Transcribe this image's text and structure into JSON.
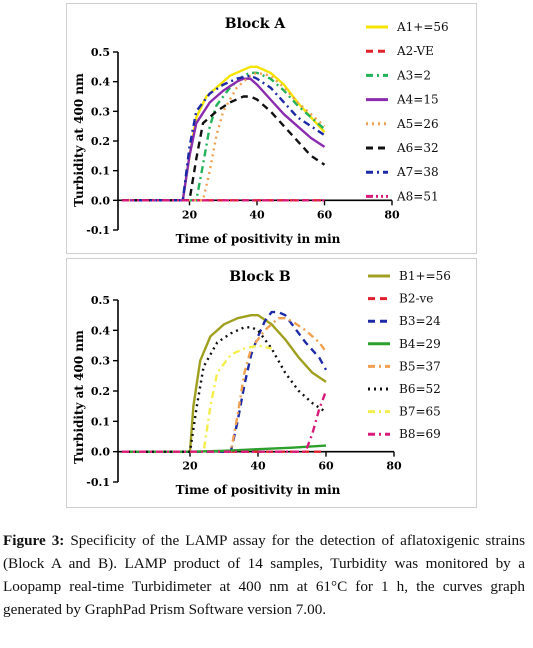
{
  "charts": [
    {
      "title": "Block A",
      "ylabel": "Turbidity at 400 nm",
      "xlabel": "Time of positivity in min",
      "xticks": [
        "20",
        "40",
        "60",
        "80"
      ],
      "yticks": [
        "-0.1",
        "0.0",
        "0.1",
        "0.2",
        "0.3",
        "0.4",
        "0.5"
      ],
      "legend": [
        "A1+=56",
        "A2-VE",
        "A3=2",
        "A4=15",
        "A5=26",
        "A6=32",
        "A7=38",
        "A8=51"
      ]
    },
    {
      "title": "Block B",
      "ylabel": "Turbidity at 400 nm",
      "xlabel": "Time of positivity in min",
      "xticks": [
        "20",
        "40",
        "60",
        "80"
      ],
      "yticks": [
        "-0.1",
        "0.0",
        "0.1",
        "0.2",
        "0.3",
        "0.4",
        "0.5"
      ],
      "legend": [
        "B1+=56",
        "B2-ve",
        "B3=24",
        "B4=29",
        "B5=37",
        "B6=52",
        "B7=65",
        "B8=69"
      ]
    }
  ],
  "caption": {
    "label": "Figure 3:",
    "text": "Specificity of the LAMP assay for the detection of aflatoxigenic strains (Block A and B). LAMP product of 14 samples, Turbidity was monitored by a Loopamp real-time Turbidimeter at 400 nm at 61°C for 1 h, the curves graph generated by GraphPad Prism Software version 7.00."
  },
  "chart_data": [
    {
      "type": "line",
      "title": "Block A",
      "xlabel": "Time of positivity in min",
      "ylabel": "Turbidity at 400 nm",
      "xlim": [
        0,
        80
      ],
      "ylim": [
        -0.1,
        0.5
      ],
      "legend_position": "right",
      "series": [
        {
          "name": "A1+=56",
          "color": "#f5e400",
          "dash": "solid",
          "x": [
            0,
            18,
            20,
            22,
            25,
            28,
            32,
            36,
            38,
            40,
            44,
            48,
            52,
            56,
            60
          ],
          "y": [
            0,
            0,
            0.15,
            0.28,
            0.35,
            0.38,
            0.42,
            0.44,
            0.45,
            0.45,
            0.43,
            0.39,
            0.33,
            0.28,
            0.23
          ]
        },
        {
          "name": "A2-VE",
          "color": "#e0202a",
          "dash": "dash",
          "x": [
            0,
            20,
            40,
            60
          ],
          "y": [
            0,
            0,
            0,
            0
          ]
        },
        {
          "name": "A3=2",
          "color": "#22b25a",
          "dash": "dashdot",
          "x": [
            0,
            22,
            24,
            26,
            28,
            32,
            36,
            38,
            40,
            44,
            48,
            52,
            56,
            60
          ],
          "y": [
            0,
            0,
            0.12,
            0.25,
            0.32,
            0.38,
            0.42,
            0.43,
            0.43,
            0.41,
            0.37,
            0.32,
            0.28,
            0.24
          ]
        },
        {
          "name": "A4=15",
          "color": "#8a2bb0",
          "dash": "solid",
          "x": [
            0,
            18,
            20,
            22,
            26,
            30,
            34,
            36,
            38,
            40,
            44,
            48,
            52,
            56,
            60
          ],
          "y": [
            0,
            0,
            0.15,
            0.26,
            0.33,
            0.37,
            0.4,
            0.41,
            0.41,
            0.39,
            0.34,
            0.29,
            0.25,
            0.21,
            0.18
          ]
        },
        {
          "name": "A5=26",
          "color": "#f0a050",
          "dash": "dot",
          "x": [
            0,
            24,
            26,
            28,
            30,
            34,
            38,
            40,
            44,
            48,
            52,
            56,
            60
          ],
          "y": [
            0,
            0,
            0.1,
            0.22,
            0.3,
            0.38,
            0.42,
            0.43,
            0.42,
            0.38,
            0.33,
            0.29,
            0.25
          ]
        },
        {
          "name": "A6=32",
          "color": "#111111",
          "dash": "dash",
          "x": [
            0,
            20,
            22,
            24,
            28,
            32,
            36,
            38,
            40,
            44,
            48,
            52,
            56,
            60
          ],
          "y": [
            0,
            0,
            0.14,
            0.26,
            0.3,
            0.33,
            0.35,
            0.35,
            0.34,
            0.3,
            0.25,
            0.2,
            0.15,
            0.12
          ]
        },
        {
          "name": "A7=38",
          "color": "#1c2aa8",
          "dash": "dashdot",
          "x": [
            0,
            18,
            20,
            22,
            26,
            30,
            34,
            38,
            40,
            44,
            48,
            52,
            56,
            60
          ],
          "y": [
            0,
            0,
            0.18,
            0.3,
            0.36,
            0.39,
            0.41,
            0.42,
            0.41,
            0.38,
            0.33,
            0.28,
            0.25,
            0.22
          ]
        },
        {
          "name": "A8=51",
          "color": "#d81b7a",
          "dash": "dashdotdot",
          "x": [
            0,
            20,
            40,
            60
          ],
          "y": [
            0,
            0,
            0,
            0
          ]
        }
      ]
    },
    {
      "type": "line",
      "title": "Block B",
      "xlabel": "Time of positivity in min",
      "ylabel": "Turbidity at 400 nm",
      "xlim": [
        0,
        80
      ],
      "ylim": [
        -0.1,
        0.5
      ],
      "legend_position": "right",
      "series": [
        {
          "name": "B1+=56",
          "color": "#a0a020",
          "dash": "solid",
          "x": [
            0,
            20,
            21,
            23,
            26,
            30,
            34,
            38,
            40,
            44,
            48,
            52,
            56,
            60
          ],
          "y": [
            0,
            0,
            0.15,
            0.3,
            0.38,
            0.42,
            0.44,
            0.45,
            0.45,
            0.42,
            0.37,
            0.31,
            0.26,
            0.23
          ]
        },
        {
          "name": "B2-ve",
          "color": "#e0202a",
          "dash": "dash",
          "x": [
            0,
            20,
            40,
            60
          ],
          "y": [
            0,
            0,
            0,
            0
          ]
        },
        {
          "name": "B3=24",
          "color": "#1c2aa8",
          "dash": "dash",
          "x": [
            0,
            32,
            34,
            36,
            38,
            40,
            42,
            44,
            46,
            48,
            50,
            54,
            58,
            60
          ],
          "y": [
            0,
            0,
            0.1,
            0.22,
            0.32,
            0.38,
            0.43,
            0.46,
            0.46,
            0.45,
            0.42,
            0.36,
            0.31,
            0.27
          ]
        },
        {
          "name": "B4=29",
          "color": "#2ca02c",
          "dash": "solid",
          "x": [
            0,
            20,
            30,
            40,
            50,
            60
          ],
          "y": [
            0,
            0,
            0.003,
            0.008,
            0.013,
            0.02
          ]
        },
        {
          "name": "B5=37",
          "color": "#f0a050",
          "dash": "dashdot",
          "x": [
            0,
            32,
            34,
            36,
            38,
            42,
            46,
            48,
            50,
            54,
            58,
            60
          ],
          "y": [
            0,
            0,
            0.12,
            0.26,
            0.34,
            0.4,
            0.44,
            0.44,
            0.43,
            0.4,
            0.36,
            0.33
          ]
        },
        {
          "name": "B6=52",
          "color": "#111111",
          "dash": "dot",
          "x": [
            0,
            20,
            22,
            24,
            28,
            32,
            36,
            38,
            40,
            44,
            48,
            52,
            56,
            60
          ],
          "y": [
            0,
            0,
            0.15,
            0.28,
            0.36,
            0.39,
            0.41,
            0.41,
            0.4,
            0.34,
            0.26,
            0.2,
            0.16,
            0.13
          ]
        },
        {
          "name": "B7=65",
          "color": "#f3ee4a",
          "dash": "dashdot",
          "x": [
            0,
            24,
            26,
            28,
            32,
            36,
            40,
            44
          ],
          "y": [
            0,
            0,
            0.15,
            0.26,
            0.32,
            0.34,
            0.35,
            0.34
          ]
        },
        {
          "name": "B8=69",
          "color": "#d81b7a",
          "dash": "dashdot",
          "x": [
            0,
            54,
            56,
            58,
            60
          ],
          "y": [
            0,
            0,
            0.06,
            0.14,
            0.2
          ]
        }
      ]
    }
  ]
}
